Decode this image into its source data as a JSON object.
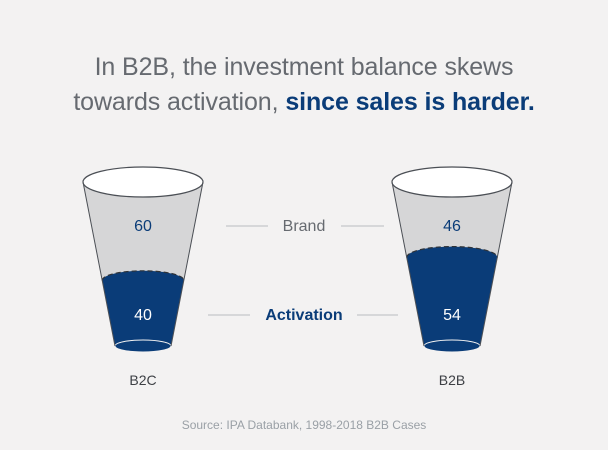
{
  "headline": {
    "part1": "In B2B, the investment balance skews",
    "part2": "towards activation,",
    "part3": "since sales is harder."
  },
  "source": "Source: IPA Databank, 1998-2018 B2B Cases",
  "colors": {
    "brand_fill": "#d6d6d7",
    "activation_fill": "#0a3c78",
    "muted_text": "#666a70",
    "accent_text": "#0a3c78"
  },
  "chart_data": {
    "type": "bar",
    "stacked": true,
    "categories": [
      "B2C",
      "B2B"
    ],
    "series": [
      {
        "name": "Brand",
        "values": [
          60,
          46
        ],
        "color": "#d6d6d7"
      },
      {
        "name": "Activation",
        "values": [
          40,
          54
        ],
        "color": "#0a3c78"
      }
    ],
    "title": "In B2B, the investment balance skews towards activation, since sales is harder.",
    "source": "Source: IPA Databank, 1998-2018 B2B Cases"
  }
}
